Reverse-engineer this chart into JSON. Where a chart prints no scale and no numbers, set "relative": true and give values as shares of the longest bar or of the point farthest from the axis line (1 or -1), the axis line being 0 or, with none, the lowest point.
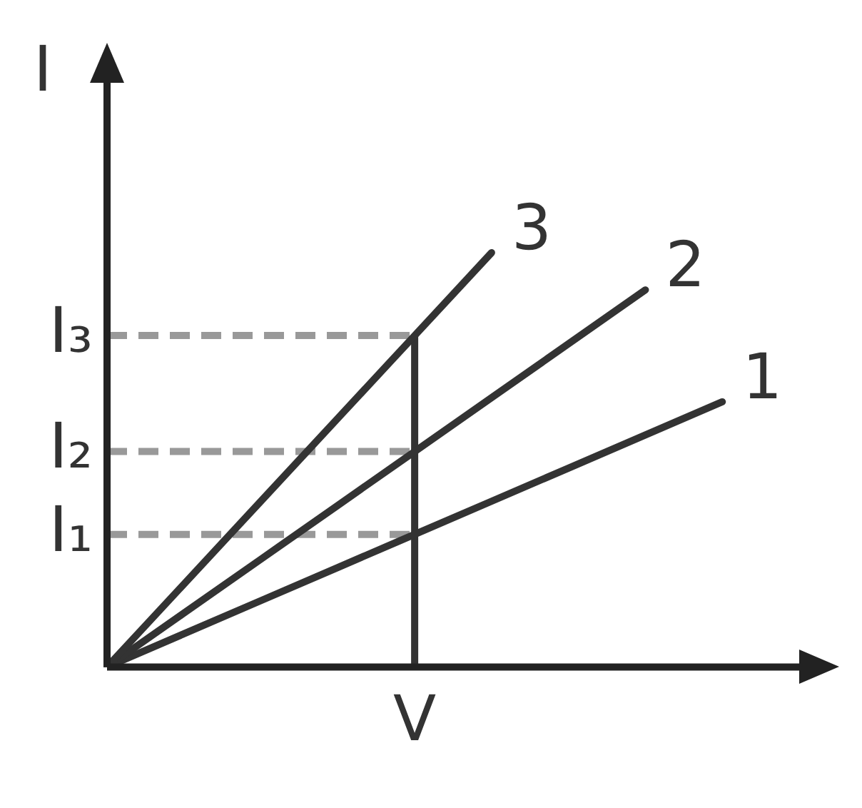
{
  "chart_data": {
    "type": "line",
    "relative": true,
    "ylabel": "I",
    "tick_labels": "x",
    "legend": false,
    "marker": "none",
    "line_style": "solid",
    "categories": [
      null,
      null,
      null,
      null,
      null,
      null,
      null,
      null,
      null,
      null
    ],
    "series": [
      {
        "name": "3",
        "color": "#333333",
        "values": [
          0,
          0.2,
          0.4,
          0.6,
          0.8,
          1,
          null,
          null,
          null,
          null
        ]
      },
      {
        "name": "2",
        "color": "#333333",
        "values": [
          0,
          0.13,
          0.26,
          0.39,
          0.52,
          0.65,
          0.78,
          0.91,
          null,
          null
        ]
      },
      {
        "name": "1",
        "color": "#333333",
        "values": [
          0,
          0.08,
          0.16,
          0.24,
          0.32,
          0.4,
          0.48,
          0.56,
          0.64,
          null
        ]
      }
    ],
    "ref_lines": [
      {
        "axis": "x",
        "label": "V",
        "color": "#333333",
        "line_style": "solid"
      },
      {
        "axis": "y",
        "value": 0.8,
        "label": "I₃",
        "color": "#999999",
        "line_style": "dashed"
      },
      {
        "axis": "y",
        "value": 0.52,
        "label": "I₂",
        "color": "#999999",
        "line_style": "dashed"
      },
      {
        "axis": "y",
        "value": 0.32,
        "label": "I₁",
        "color": "#999999",
        "line_style": "dashed"
      }
    ]
  }
}
